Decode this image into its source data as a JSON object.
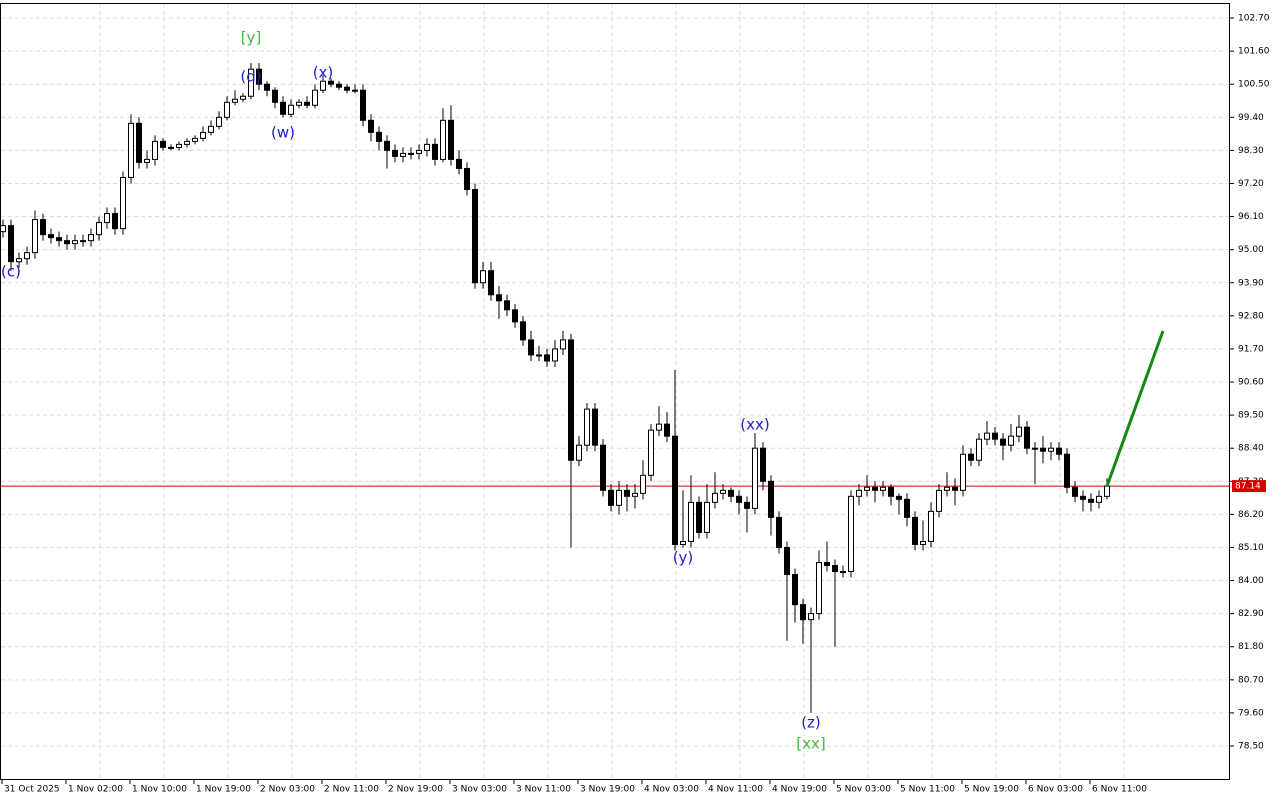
{
  "chart_data": {
    "type": "candlestick",
    "bull_color": "#ffffff",
    "bear_color": "#000000",
    "wick_color": "#000000",
    "grid": true,
    "categories": [
      "31 Oct 2025",
      null,
      null,
      null,
      null,
      null,
      null,
      null,
      "1 Nov 02:00",
      null,
      null,
      null,
      null,
      null,
      null,
      null,
      "1 Nov 10:00",
      null,
      null,
      null,
      null,
      null,
      null,
      null,
      "1 Nov 19:00",
      null,
      null,
      null,
      null,
      null,
      null,
      null,
      "2 Nov 03:00",
      null,
      null,
      null,
      null,
      null,
      null,
      null,
      "2 Nov 11:00",
      null,
      null,
      null,
      null,
      null,
      null,
      null,
      "2 Nov 19:00",
      null,
      null,
      null,
      null,
      null,
      null,
      null,
      "3 Nov 03:00",
      null,
      null,
      null,
      null,
      null,
      null,
      null,
      "3 Nov 11:00",
      null,
      null,
      null,
      null,
      null,
      null,
      null,
      "3 Nov 19:00",
      null,
      null,
      null,
      null,
      null,
      null,
      null,
      "4 Nov 03:00",
      null,
      null,
      null,
      null,
      null,
      null,
      null,
      "4 Nov 11:00",
      null,
      null,
      null,
      null,
      null,
      null,
      null,
      "4 Nov 19:00",
      null,
      null,
      null,
      null,
      null,
      null,
      null,
      "5 Nov 03:00",
      null,
      null,
      null,
      null,
      null,
      null,
      null,
      "5 Nov 11:00",
      null,
      null,
      null,
      null,
      null,
      null,
      null,
      "5 Nov 19:00",
      null,
      null,
      null,
      null,
      null,
      null,
      null,
      "6 Nov 03:00",
      null,
      null,
      null,
      null,
      null,
      null,
      null,
      "6 Nov 11:00",
      null,
      null
    ],
    "open": [
      95.6,
      95.8,
      94.6,
      94.7,
      94.9,
      96.0,
      95.5,
      95.4,
      95.3,
      95.2,
      95.3,
      95.3,
      95.5,
      95.9,
      96.2,
      95.7,
      97.4,
      99.2,
      97.9,
      98.0,
      98.6,
      98.4,
      98.4,
      98.5,
      98.6,
      98.7,
      98.9,
      99.1,
      99.4,
      99.9,
      100.0,
      100.1,
      101.0,
      100.5,
      100.3,
      99.9,
      99.5,
      99.8,
      99.9,
      99.8,
      100.3,
      100.6,
      100.5,
      100.4,
      100.3,
      100.3,
      99.3,
      98.9,
      98.6,
      98.3,
      98.1,
      98.2,
      98.2,
      98.3,
      98.5,
      98.0,
      99.3,
      98.0,
      97.7,
      97.0,
      93.9,
      94.3,
      93.5,
      93.3,
      93.0,
      92.6,
      92.0,
      91.5,
      91.5,
      91.3,
      91.7,
      92.0,
      88.0,
      88.5,
      89.7,
      88.5,
      87.0,
      86.5,
      87.0,
      86.8,
      86.9,
      87.5,
      89.0,
      89.2,
      88.8,
      85.2,
      85.3,
      86.6,
      85.6,
      86.6,
      86.9,
      87.0,
      86.8,
      86.6,
      86.4,
      88.4,
      87.3,
      86.1,
      85.1,
      84.2,
      83.2,
      82.7,
      82.9,
      84.6,
      84.5,
      84.3,
      84.3,
      86.8,
      87.0,
      87.1,
      87.0,
      87.1,
      86.8,
      86.7,
      86.1,
      85.2,
      85.3,
      86.3,
      87.0,
      87.1,
      87.0,
      88.2,
      88.0,
      88.7,
      88.9,
      88.7,
      88.5,
      88.8,
      89.1,
      88.4,
      88.4,
      88.3,
      88.4,
      88.2,
      87.1,
      86.8,
      86.7,
      86.6,
      86.8
    ],
    "high": [
      96.0,
      96.0,
      94.9,
      95.1,
      96.3,
      96.2,
      95.7,
      95.6,
      95.5,
      95.5,
      95.5,
      95.7,
      96.1,
      96.4,
      96.4,
      97.6,
      99.5,
      99.4,
      98.3,
      98.8,
      98.7,
      98.5,
      98.6,
      98.7,
      98.8,
      99.1,
      99.3,
      99.6,
      100.1,
      100.3,
      100.2,
      101.2,
      101.2,
      100.6,
      100.4,
      100.1,
      100.0,
      100.0,
      100.1,
      100.5,
      100.8,
      100.7,
      100.6,
      100.5,
      100.5,
      100.5,
      99.5,
      99.1,
      98.8,
      98.5,
      98.4,
      98.4,
      98.5,
      98.7,
      98.7,
      99.7,
      99.8,
      98.3,
      97.9,
      97.2,
      94.6,
      94.6,
      93.8,
      93.5,
      93.2,
      92.8,
      92.3,
      91.8,
      91.7,
      92.0,
      92.3,
      92.2,
      88.8,
      89.9,
      89.9,
      88.7,
      87.2,
      87.3,
      87.2,
      87.2,
      88.0,
      89.2,
      89.8,
      89.6,
      91.0,
      87.0,
      87.5,
      86.8,
      87.2,
      87.6,
      87.2,
      87.1,
      87.0,
      86.8,
      88.9,
      88.6,
      87.5,
      86.3,
      85.3,
      84.4,
      83.4,
      83.1,
      85.0,
      85.3,
      84.7,
      84.5,
      87.0,
      87.2,
      87.5,
      87.3,
      87.3,
      87.2,
      86.9,
      86.9,
      86.3,
      86.0,
      86.6,
      87.2,
      87.6,
      87.4,
      88.5,
      88.4,
      88.9,
      89.3,
      89.1,
      88.9,
      89.2,
      89.5,
      89.3,
      88.6,
      88.8,
      88.6,
      88.6,
      88.4,
      87.3,
      87.0,
      86.9,
      87.0,
      87.4
    ],
    "low": [
      95.4,
      94.3,
      94.4,
      94.5,
      94.7,
      95.3,
      95.2,
      95.1,
      95.0,
      95.0,
      95.1,
      95.1,
      95.3,
      95.7,
      95.5,
      95.5,
      97.2,
      97.7,
      97.7,
      97.8,
      98.3,
      98.3,
      98.3,
      98.4,
      98.5,
      98.6,
      98.8,
      99.0,
      99.3,
      99.8,
      99.9,
      100.0,
      100.3,
      100.1,
      99.7,
      99.4,
      99.4,
      99.7,
      99.7,
      99.7,
      100.2,
      100.4,
      100.3,
      100.2,
      100.2,
      99.1,
      98.6,
      98.3,
      97.7,
      97.9,
      97.9,
      98.0,
      98.0,
      98.1,
      97.8,
      97.9,
      97.8,
      97.5,
      96.8,
      93.7,
      93.7,
      93.3,
      92.7,
      92.8,
      92.4,
      91.8,
      91.3,
      91.3,
      91.1,
      91.1,
      91.5,
      85.1,
      87.8,
      88.3,
      88.3,
      86.8,
      86.3,
      86.2,
      86.3,
      86.4,
      86.7,
      87.3,
      88.8,
      88.6,
      85.0,
      85.1,
      85.1,
      85.4,
      85.4,
      86.4,
      86.7,
      86.6,
      86.2,
      85.6,
      86.2,
      87.0,
      85.5,
      84.9,
      82.0,
      82.6,
      81.9,
      79.6,
      82.7,
      84.3,
      81.8,
      84.1,
      84.1,
      86.5,
      86.8,
      86.6,
      86.8,
      86.5,
      86.2,
      85.8,
      85.0,
      85.0,
      85.1,
      86.1,
      86.8,
      86.5,
      86.8,
      87.8,
      87.8,
      88.5,
      88.5,
      88.0,
      88.3,
      88.6,
      88.2,
      87.2,
      87.9,
      88.0,
      88.0,
      86.9,
      86.6,
      86.3,
      86.3,
      86.4,
      86.7
    ],
    "close": [
      95.8,
      94.6,
      94.7,
      94.9,
      96.0,
      95.5,
      95.4,
      95.3,
      95.2,
      95.3,
      95.3,
      95.5,
      95.9,
      96.2,
      95.7,
      97.4,
      99.2,
      97.9,
      98.0,
      98.6,
      98.4,
      98.4,
      98.5,
      98.6,
      98.7,
      98.9,
      99.1,
      99.4,
      99.9,
      100.0,
      100.1,
      101.0,
      100.5,
      100.3,
      99.9,
      99.5,
      99.8,
      99.9,
      99.8,
      100.3,
      100.6,
      100.5,
      100.4,
      100.3,
      100.3,
      99.3,
      98.9,
      98.6,
      98.3,
      98.1,
      98.2,
      98.2,
      98.3,
      98.5,
      98.0,
      99.3,
      98.0,
      97.7,
      97.0,
      93.9,
      94.3,
      93.5,
      93.3,
      93.0,
      92.6,
      92.0,
      91.5,
      91.5,
      91.3,
      91.7,
      92.0,
      88.0,
      88.5,
      89.7,
      88.5,
      87.0,
      86.5,
      87.0,
      86.8,
      86.9,
      87.5,
      89.0,
      89.2,
      88.8,
      85.2,
      85.3,
      86.6,
      85.6,
      86.6,
      86.9,
      87.0,
      86.8,
      86.6,
      86.4,
      88.4,
      87.3,
      86.1,
      85.1,
      84.2,
      83.2,
      82.7,
      82.9,
      84.6,
      84.5,
      84.3,
      84.3,
      86.8,
      87.0,
      87.1,
      87.0,
      87.1,
      86.8,
      86.7,
      86.1,
      85.2,
      85.3,
      86.3,
      87.0,
      87.1,
      87.0,
      88.2,
      88.0,
      88.7,
      88.9,
      88.7,
      88.5,
      88.8,
      89.1,
      88.4,
      88.4,
      88.3,
      88.4,
      88.2,
      87.1,
      86.8,
      86.7,
      86.6,
      86.8,
      87.14
    ],
    "ylim": [
      77.37,
      103.2
    ],
    "yticks": [
      {
        "value": 102.7,
        "label": "102.70"
      },
      {
        "value": 101.6,
        "label": "101.60"
      },
      {
        "value": 100.5,
        "label": "100.50"
      },
      {
        "value": 99.4,
        "label": "99.40"
      },
      {
        "value": 98.3,
        "label": "98.30"
      },
      {
        "value": 97.2,
        "label": "97.20"
      },
      {
        "value": 96.1,
        "label": "96.10"
      },
      {
        "value": 95.0,
        "label": "95.00"
      },
      {
        "value": 93.9,
        "label": "93.90"
      },
      {
        "value": 92.8,
        "label": "92.80"
      },
      {
        "value": 91.7,
        "label": "91.70"
      },
      {
        "value": 90.6,
        "label": "90.60"
      },
      {
        "value": 89.5,
        "label": "89.50"
      },
      {
        "value": 88.4,
        "label": "88.40"
      },
      {
        "value": 87.3,
        "label": "87.30"
      },
      {
        "value": 86.2,
        "label": "86.20"
      },
      {
        "value": 85.1,
        "label": "85.10"
      },
      {
        "value": 84.0,
        "label": "84.00"
      },
      {
        "value": 82.9,
        "label": "82.90"
      },
      {
        "value": 81.8,
        "label": "81.80"
      },
      {
        "value": 80.7,
        "label": "80.70"
      },
      {
        "value": 79.6,
        "label": "79.60"
      },
      {
        "value": 78.5,
        "label": "78.50"
      }
    ],
    "current_price": 87.14,
    "current_price_color": "#d40000",
    "forecast": {
      "color": "#138a13",
      "candles": [
        138,
        145
      ],
      "values": [
        87.14,
        92.3
      ]
    },
    "annotations": [
      {
        "text": "(c)",
        "candle": 1,
        "price": 94.26,
        "color": "#2020d0"
      },
      {
        "text": "[y]",
        "candle": 31,
        "price": 102.03,
        "color": "#3cbe3c"
      },
      {
        "text": "(d)",
        "candle": 31,
        "price": 100.74,
        "color": "#2020d0"
      },
      {
        "text": "(w)",
        "candle": 35,
        "price": 98.88,
        "color": "#2020d0"
      },
      {
        "text": "(x)",
        "candle": 40,
        "price": 100.87,
        "color": "#2020d0"
      },
      {
        "text": "(y)",
        "candle": 85,
        "price": 84.75,
        "color": "#2020d0"
      },
      {
        "text": "(xx)",
        "candle": 94,
        "price": 89.17,
        "color": "#2020d0"
      },
      {
        "text": "(z)",
        "candle": 101,
        "price": 79.26,
        "color": "#2020d0"
      },
      {
        "text": "[xx]",
        "candle": 101,
        "price": 78.56,
        "color": "#3cbe3c"
      }
    ]
  }
}
